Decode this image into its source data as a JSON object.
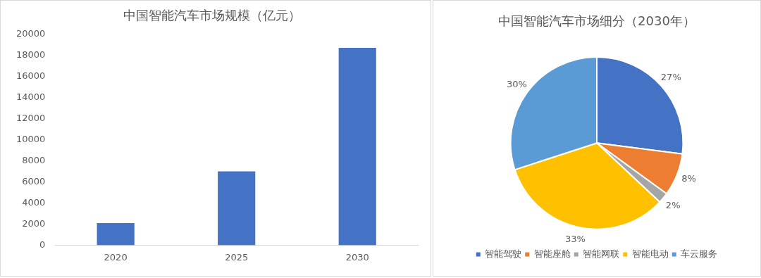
{
  "chart_data": [
    {
      "type": "bar",
      "title": "中国智能汽车市场规模（亿元）",
      "categories": [
        "2020",
        "2025",
        "2030"
      ],
      "values": [
        2100,
        7000,
        18700
      ],
      "color": "#4472c4",
      "ylim": [
        0,
        20000
      ],
      "yticks": [
        0,
        2000,
        4000,
        6000,
        8000,
        10000,
        12000,
        14000,
        16000,
        18000,
        20000
      ],
      "grid": false,
      "legend": false
    },
    {
      "type": "pie",
      "title": "中国智能汽车市场细分（2030年）",
      "categories": [
        "智能驾驶",
        "智能座舱",
        "智能网联",
        "智能电动",
        "车云服务"
      ],
      "values": [
        27,
        8,
        2,
        33,
        30
      ],
      "value_labels": [
        "27%",
        "8%",
        "2%",
        "33%",
        "30%"
      ],
      "colors": [
        "#4472c4",
        "#ed7d31",
        "#a5a5a5",
        "#ffc000",
        "#5b9bd5"
      ],
      "legend": "bottom"
    }
  ]
}
